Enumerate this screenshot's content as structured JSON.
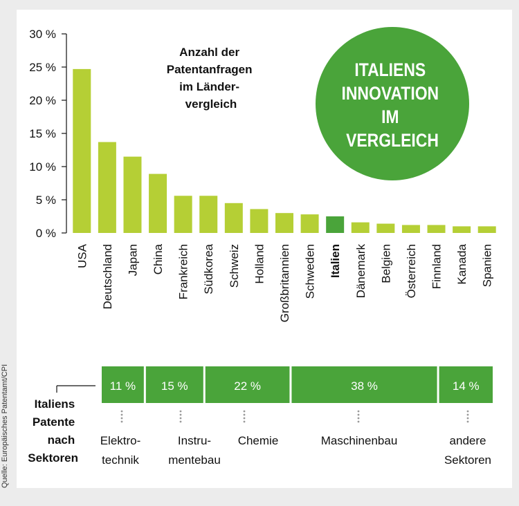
{
  "source": "Quelle: Europäisches Patentamt/CPI",
  "badge": {
    "lines": [
      "ITALIENS",
      "INNOVATION",
      "IM",
      "VERGLEICH"
    ]
  },
  "chart_data": [
    {
      "type": "bar",
      "title_lines": [
        "Anzahl der",
        "Patentanfragen",
        "im Länder-",
        "vergleich"
      ],
      "categories": [
        "USA",
        "Deutschland",
        "Japan",
        "China",
        "Frankreich",
        "Südkorea",
        "Schweiz",
        "Holland",
        "Großbritannien",
        "Schweden",
        "Italien",
        "Dänemark",
        "Belgien",
        "Österreich",
        "Finnland",
        "Kanada",
        "Spanien"
      ],
      "values": [
        24.7,
        13.7,
        11.5,
        8.9,
        5.6,
        5.6,
        4.5,
        3.6,
        3.0,
        2.8,
        2.5,
        1.6,
        1.4,
        1.2,
        1.2,
        1.0,
        1.0
      ],
      "highlight": "Italien",
      "y_ticks": [
        "0 %",
        "5 %",
        "10 %",
        "15 %",
        "20 %",
        "25 %",
        "30 %"
      ],
      "ylim": [
        0,
        30
      ],
      "colors": {
        "bar": "#b5cf35",
        "highlight": "#4aa43a"
      }
    },
    {
      "type": "bar",
      "orientation": "stacked-horizontal",
      "title_lines": [
        "Italiens",
        "Patente",
        "nach",
        "Sektoren"
      ],
      "segments": [
        {
          "value": 11,
          "label": "11 %",
          "name_lines": [
            "Elektro-",
            "technik"
          ]
        },
        {
          "value": 15,
          "label": "15 %",
          "name_lines": [
            "Instru-",
            "mentebau"
          ]
        },
        {
          "value": 22,
          "label": "22 %",
          "name_lines": [
            "Chemie"
          ]
        },
        {
          "value": 38,
          "label": "38 %",
          "name_lines": [
            "Maschinenbau"
          ]
        },
        {
          "value": 14,
          "label": "14 %",
          "name_lines": [
            "andere",
            "Sektoren"
          ]
        }
      ],
      "colors": {
        "segment": "#4aa43a"
      }
    }
  ]
}
